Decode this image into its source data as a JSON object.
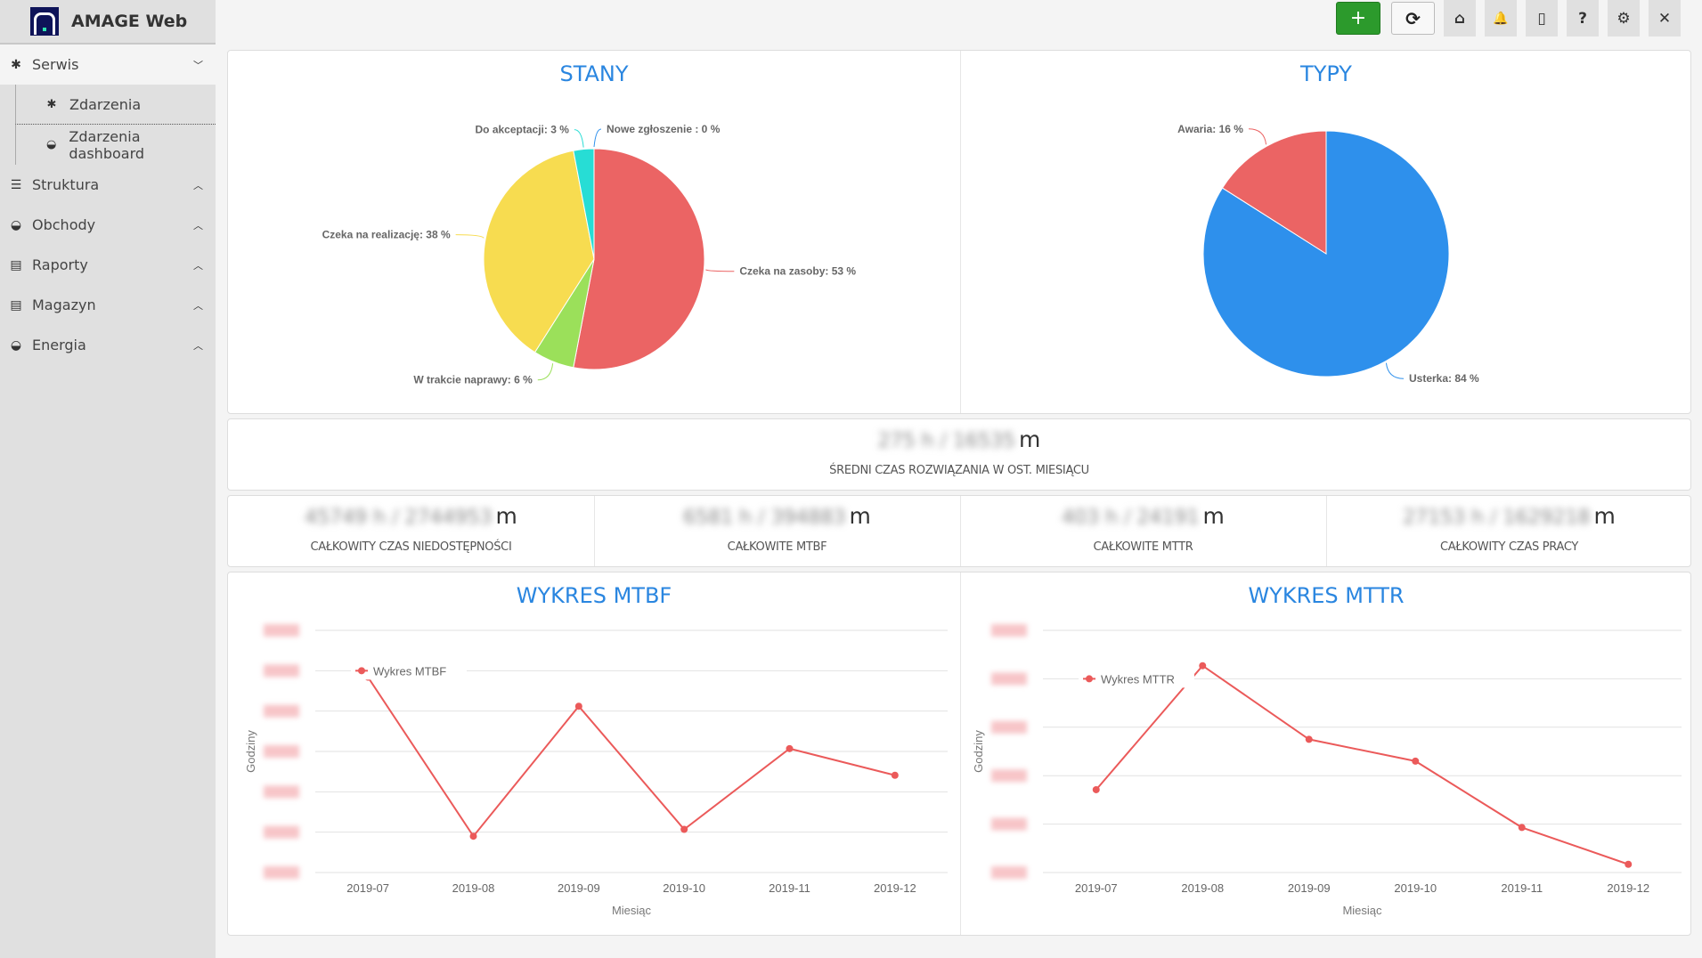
{
  "app": {
    "name": "AMAGE Web"
  },
  "sidebar": {
    "items": [
      {
        "label": "Serwis",
        "icon": "bug-icon",
        "expanded": true,
        "children": [
          {
            "label": "Zdarzenia",
            "icon": "bug-icon"
          },
          {
            "label": "Zdarzenia dashboard",
            "icon": "dashboard-icon"
          }
        ]
      },
      {
        "label": "Struktura",
        "icon": "list-icon"
      },
      {
        "label": "Obchody",
        "icon": "dashboard-icon"
      },
      {
        "label": "Raporty",
        "icon": "file-icon"
      },
      {
        "label": "Magazyn",
        "icon": "file-icon"
      },
      {
        "label": "Energia",
        "icon": "dashboard-icon"
      }
    ]
  },
  "toolbar": {
    "add": "+",
    "refresh": "⟳",
    "home": "⌂",
    "bell": "🔔",
    "mobile": "▯",
    "help": "?",
    "settings": "⚙",
    "close": "✕"
  },
  "kpis": {
    "avg": {
      "value": "275 h / 16535",
      "unit": "m",
      "label": "ŚREDNI CZAS ROZWIĄZANIA W OST. MIESIĄCU"
    },
    "items": [
      {
        "value": "45749 h / 2744953",
        "unit": "m",
        "label": "CAŁKOWITY CZAS NIEDOSTĘPNOŚCI"
      },
      {
        "value": "6581 h / 394883",
        "unit": "m",
        "label": "CAŁKOWITE MTBF"
      },
      {
        "value": "403 h / 24191",
        "unit": "m",
        "label": "CAŁKOWITE MTTR"
      },
      {
        "value": "27153 h / 1629218",
        "unit": "m",
        "label": "CAŁKOWITY CZAS PRACY"
      }
    ]
  },
  "chart_data": [
    {
      "type": "pie",
      "title": "STANY",
      "slices": [
        {
          "label": "Czeka na zasoby: 53 %",
          "value": 53,
          "color": "#eb6464"
        },
        {
          "label": "W trakcie naprawy: 6 %",
          "value": 6,
          "color": "#9be05a"
        },
        {
          "label": "Czeka na realizację: 38 %",
          "value": 38,
          "color": "#f7dc50"
        },
        {
          "label": "Do akceptacji: 3 %",
          "value": 3,
          "color": "#27ddd5"
        },
        {
          "label": "Nowe zgłoszenie : 0 %",
          "value": 0,
          "color": "#2e90ec"
        }
      ]
    },
    {
      "type": "pie",
      "title": "TYPY",
      "slices": [
        {
          "label": "Usterka: 84 %",
          "value": 84,
          "color": "#2e90ec"
        },
        {
          "label": "Awaria: 16 %",
          "value": 16,
          "color": "#eb6464"
        }
      ]
    },
    {
      "type": "line",
      "title": "WYKRES MTBF",
      "xlabel": "Miesiąc",
      "ylabel": "Godziny",
      "categories": [
        "2019-07",
        "2019-08",
        "2019-09",
        "2019-10",
        "2019-11",
        "2019-12"
      ],
      "series": [
        {
          "name": "Wykres MTBF",
          "values": [
            4.84,
            0.9,
            4.12,
            1.07,
            3.07,
            2.41
          ],
          "color": "#eb5a5a"
        }
      ],
      "ylim": [
        0,
        6
      ],
      "ytick_labels_redacted": true,
      "grid": true,
      "legend": "top-left"
    },
    {
      "type": "line",
      "title": "WYKRES MTTR",
      "xlabel": "Miesiąc",
      "ylabel": "Godziny",
      "categories": [
        "2019-07",
        "2019-08",
        "2019-09",
        "2019-10",
        "2019-11",
        "2019-12"
      ],
      "series": [
        {
          "name": "Wykres MTTR",
          "values": [
            1.71,
            4.27,
            2.75,
            2.3,
            0.93,
            0.17
          ],
          "color": "#eb5a5a"
        }
      ],
      "ylim": [
        0,
        5
      ],
      "ytick_labels_redacted": true,
      "grid": true,
      "legend": "top-left"
    }
  ]
}
